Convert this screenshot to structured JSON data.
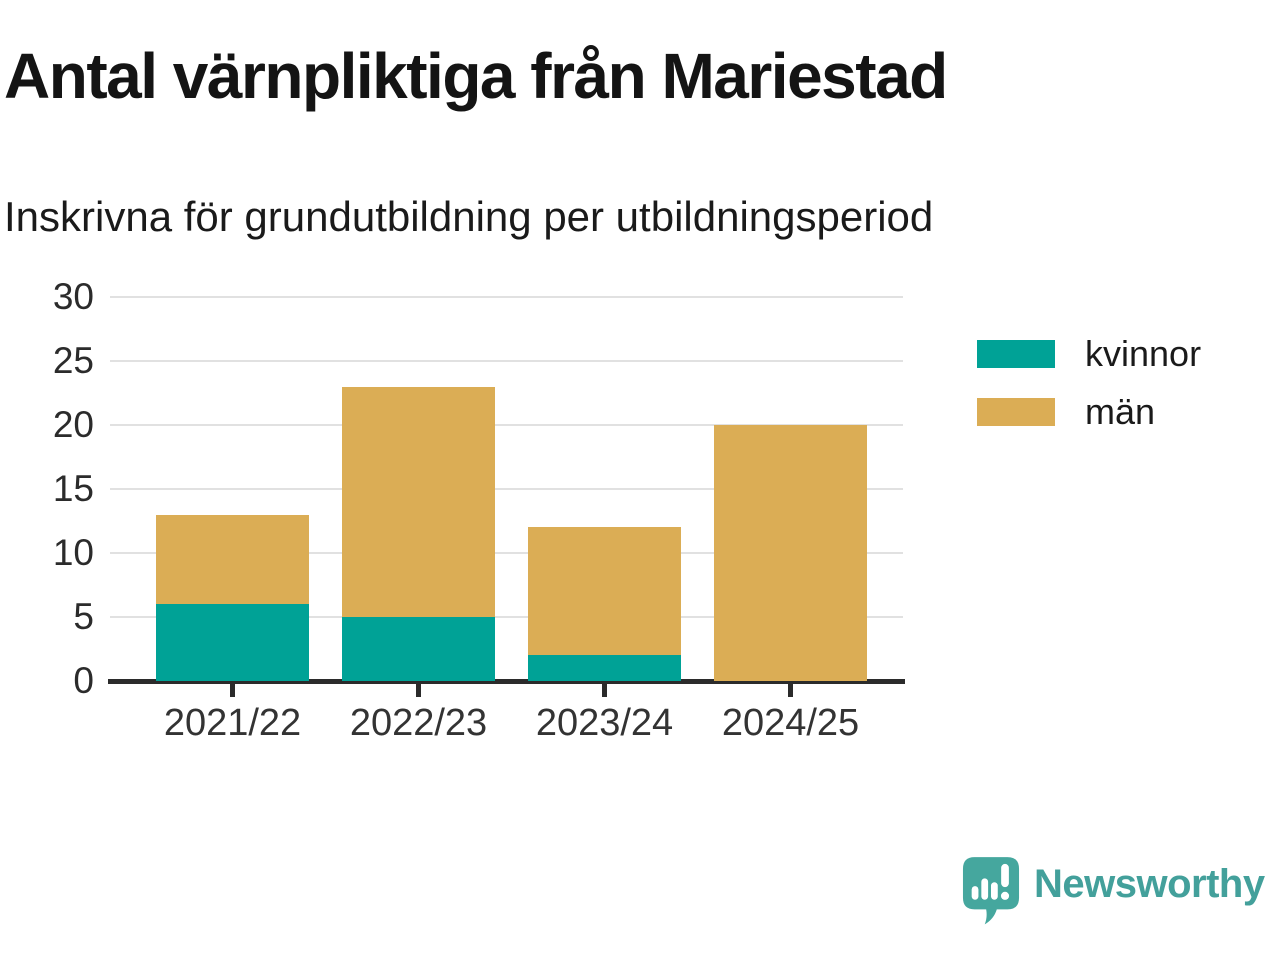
{
  "header": {
    "title": "Antal värnpliktiga från Mariestad",
    "subtitle": "Inskrivna för grundutbildning per utbildningsperiod"
  },
  "chart_data": {
    "type": "bar",
    "stacked": true,
    "title": "Antal värnpliktiga från Mariestad",
    "subtitle": "Inskrivna för grundutbildning per utbildningsperiod",
    "categories": [
      "2021/22",
      "2022/23",
      "2023/24",
      "2024/25"
    ],
    "series": [
      {
        "name": "kvinnor",
        "color": "#00a296",
        "values": [
          6,
          5,
          2,
          0
        ]
      },
      {
        "name": "män",
        "color": "#dbad55",
        "values": [
          7,
          18,
          10,
          20
        ]
      }
    ],
    "stacked_totals": [
      13,
      23,
      12,
      20
    ],
    "xlabel": "",
    "ylabel": "",
    "ylim": [
      0,
      30
    ],
    "yticks": [
      0,
      5,
      10,
      15,
      20,
      25,
      30
    ],
    "grid": true,
    "legend_position": "right"
  },
  "legend": {
    "items": [
      {
        "label": "kvinnor",
        "color": "#00a296"
      },
      {
        "label": "män",
        "color": "#dbad55"
      }
    ]
  },
  "axis": {
    "line_color": "#2b2b2b",
    "grid_color": "#e1e1e1",
    "text_color": "#2b2b2b"
  },
  "footer": {
    "brand_name": "Newsworthy",
    "brand_text_color": "#43a09b",
    "logo_color": "#45a79e",
    "logo_icon": "speech-bubble-bar-chart-icon"
  }
}
